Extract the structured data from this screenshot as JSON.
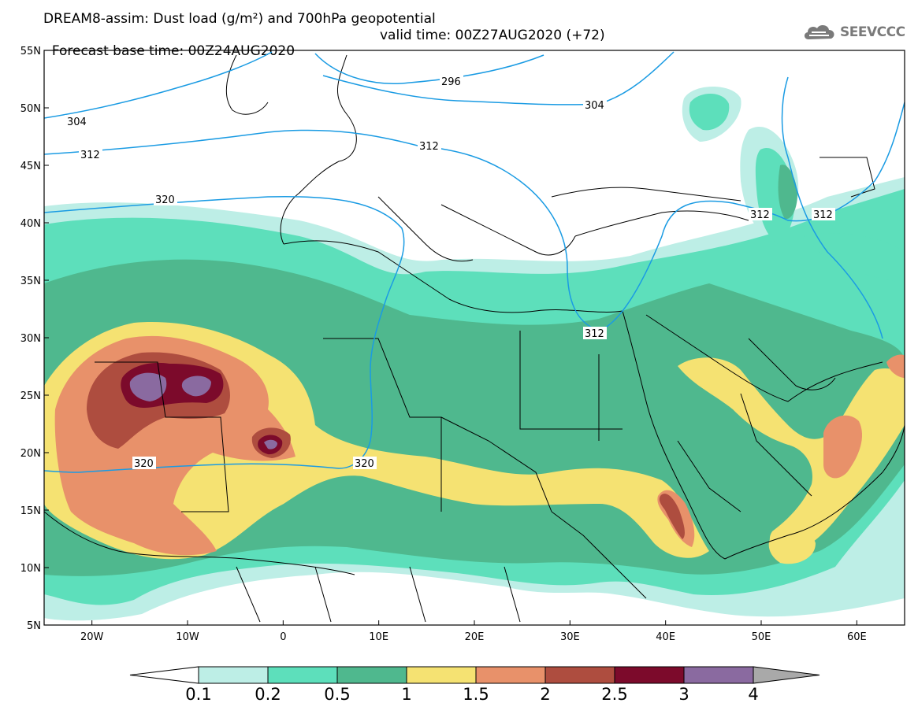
{
  "header": {
    "title_line_1": "DREAM8-assim: Dust load (g/m²) and 700hPa geopotential",
    "base_time": "Forecast base time: 00Z24AUG2020",
    "valid_time": "valid time: 00Z27AUG2020 (+72)"
  },
  "logo": {
    "text": "SEEVCCC",
    "icon": "cloud-icon"
  },
  "map": {
    "lon_range": [
      -25,
      65
    ],
    "lat_range": [
      5,
      55
    ],
    "lat_ticks": [
      "55N",
      "50N",
      "45N",
      "40N",
      "35N",
      "30N",
      "25N",
      "20N",
      "15N",
      "10N",
      "5N"
    ],
    "lon_ticks": [
      "20W",
      "10W",
      "0",
      "10E",
      "20E",
      "30E",
      "40E",
      "50E",
      "60E"
    ],
    "contour_labels": [
      "296",
      "304",
      "304",
      "312",
      "312",
      "312",
      "312",
      "312",
      "320",
      "320",
      "320"
    ]
  },
  "legend": {
    "levels": [
      "0.1",
      "0.2",
      "0.5",
      "1",
      "1.5",
      "2",
      "2.5",
      "3",
      "4"
    ],
    "colors": [
      "#bdeee6",
      "#5ddfbb",
      "#4fb88e",
      "#f5e272",
      "#e8916a",
      "#ae4d3f",
      "#7c0a2b",
      "#8a6aa0"
    ],
    "under_color": "#ffffff",
    "over_color": "#a9a9a9"
  },
  "colors": {
    "contour": "#1a9be3",
    "border": "#000000"
  }
}
